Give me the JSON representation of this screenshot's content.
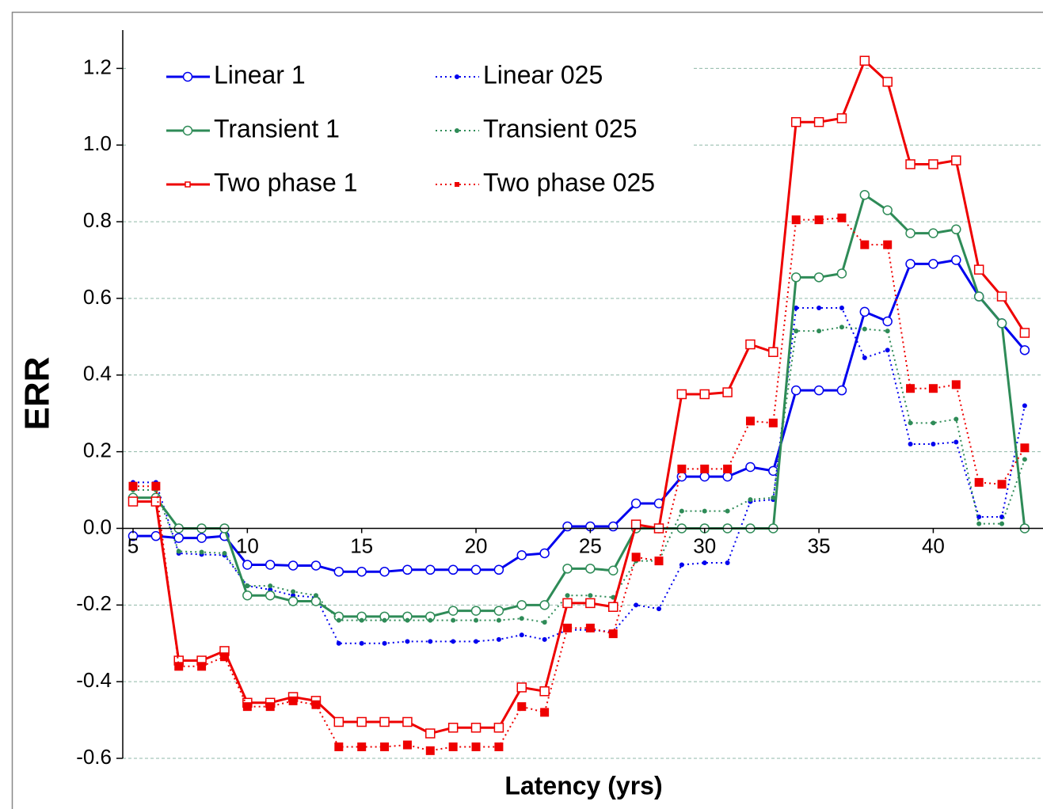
{
  "chart_data": {
    "type": "line",
    "xlabel": "Latency (yrs)",
    "ylabel": "ERR",
    "x": [
      5,
      6,
      7,
      8,
      9,
      10,
      11,
      12,
      13,
      14,
      15,
      16,
      17,
      18,
      19,
      20,
      21,
      22,
      23,
      24,
      25,
      26,
      27,
      28,
      29,
      30,
      31,
      32,
      33,
      34,
      35,
      36,
      37,
      38,
      39,
      40,
      41,
      42,
      43,
      44
    ],
    "series": [
      {
        "name": "Linear 1",
        "color": "#0000ee",
        "style": "solid",
        "marker": "circle",
        "values": [
          -0.02,
          -0.02,
          -0.025,
          -0.025,
          -0.02,
          -0.095,
          -0.095,
          -0.097,
          -0.097,
          -0.113,
          -0.113,
          -0.113,
          -0.108,
          -0.108,
          -0.108,
          -0.108,
          -0.108,
          -0.07,
          -0.065,
          0.005,
          0.005,
          0.005,
          0.065,
          0.065,
          0.135,
          0.135,
          0.135,
          0.16,
          0.15,
          0.36,
          0.36,
          0.36,
          0.565,
          0.54,
          0.69,
          0.69,
          0.7,
          0.605,
          0.535,
          0.465
        ]
      },
      {
        "name": "Linear 025",
        "color": "#0000ee",
        "style": "dotted",
        "marker": "circle",
        "values": [
          0.12,
          0.12,
          -0.065,
          -0.068,
          -0.07,
          -0.15,
          -0.16,
          -0.175,
          -0.18,
          -0.3,
          -0.3,
          -0.3,
          -0.295,
          -0.295,
          -0.295,
          -0.295,
          -0.29,
          -0.278,
          -0.29,
          -0.265,
          -0.265,
          -0.27,
          -0.2,
          -0.21,
          -0.095,
          -0.09,
          -0.09,
          0.07,
          0.075,
          0.575,
          0.575,
          0.575,
          0.445,
          0.465,
          0.22,
          0.22,
          0.225,
          0.03,
          0.03,
          0.32
        ]
      },
      {
        "name": "Transient 1",
        "color": "#2e8b57",
        "style": "solid",
        "marker": "circle",
        "values": [
          0.08,
          0.08,
          0,
          0,
          0,
          -0.175,
          -0.175,
          -0.19,
          -0.19,
          -0.23,
          -0.23,
          -0.23,
          -0.23,
          -0.23,
          -0.215,
          -0.215,
          -0.215,
          -0.2,
          -0.2,
          -0.105,
          -0.105,
          -0.11,
          0,
          0,
          0,
          0,
          0,
          0,
          0,
          0.655,
          0.655,
          0.665,
          0.87,
          0.83,
          0.77,
          0.77,
          0.78,
          0.605,
          0.535,
          0
        ]
      },
      {
        "name": "Transient 025",
        "color": "#2e8b57",
        "style": "dotted",
        "marker": "circle",
        "values": [
          0.1,
          0.1,
          -0.06,
          -0.062,
          -0.065,
          -0.15,
          -0.15,
          -0.165,
          -0.175,
          -0.24,
          -0.24,
          -0.24,
          -0.24,
          -0.24,
          -0.24,
          -0.24,
          -0.24,
          -0.235,
          -0.245,
          -0.175,
          -0.175,
          -0.18,
          -0.085,
          -0.085,
          0.045,
          0.045,
          0.045,
          0.075,
          0.08,
          0.515,
          0.515,
          0.525,
          0.52,
          0.515,
          0.275,
          0.275,
          0.285,
          0.012,
          0.012,
          0.18
        ]
      },
      {
        "name": "Two phase 1",
        "color": "#ee0000",
        "style": "solid",
        "marker": "square",
        "values": [
          0.07,
          0.07,
          -0.345,
          -0.345,
          -0.32,
          -0.455,
          -0.455,
          -0.44,
          -0.45,
          -0.505,
          -0.505,
          -0.505,
          -0.505,
          -0.535,
          -0.52,
          -0.52,
          -0.52,
          -0.415,
          -0.425,
          -0.195,
          -0.195,
          -0.205,
          0.01,
          0,
          0.35,
          0.35,
          0.355,
          0.48,
          0.46,
          1.06,
          1.06,
          1.07,
          1.22,
          1.165,
          0.95,
          0.95,
          0.96,
          0.675,
          0.605,
          0.51
        ]
      },
      {
        "name": "Two phase 025",
        "color": "#ee0000",
        "style": "dotted",
        "marker": "square",
        "values": [
          0.11,
          0.11,
          -0.36,
          -0.36,
          -0.335,
          -0.465,
          -0.465,
          -0.45,
          -0.46,
          -0.57,
          -0.57,
          -0.57,
          -0.565,
          -0.58,
          -0.57,
          -0.57,
          -0.57,
          -0.465,
          -0.48,
          -0.26,
          -0.26,
          -0.275,
          -0.075,
          -0.085,
          0.155,
          0.155,
          0.155,
          0.28,
          0.275,
          0.805,
          0.805,
          0.81,
          0.74,
          0.74,
          0.365,
          0.365,
          0.375,
          0.12,
          0.115,
          0.21
        ]
      }
    ],
    "xlim": [
      4.55,
      44.8
    ],
    "xticks": [
      5,
      10,
      15,
      20,
      25,
      30,
      35,
      40
    ],
    "ylim": [
      -0.6,
      1.3
    ],
    "yticks": [
      -0.6,
      -0.4,
      -0.2,
      {
        "value": 0,
        "label": "0.0"
      },
      0.2,
      0.4,
      0.6,
      0.8,
      {
        "value": 1,
        "label": "1.0"
      },
      1.2
    ],
    "grid": true,
    "legend": "upper left"
  }
}
